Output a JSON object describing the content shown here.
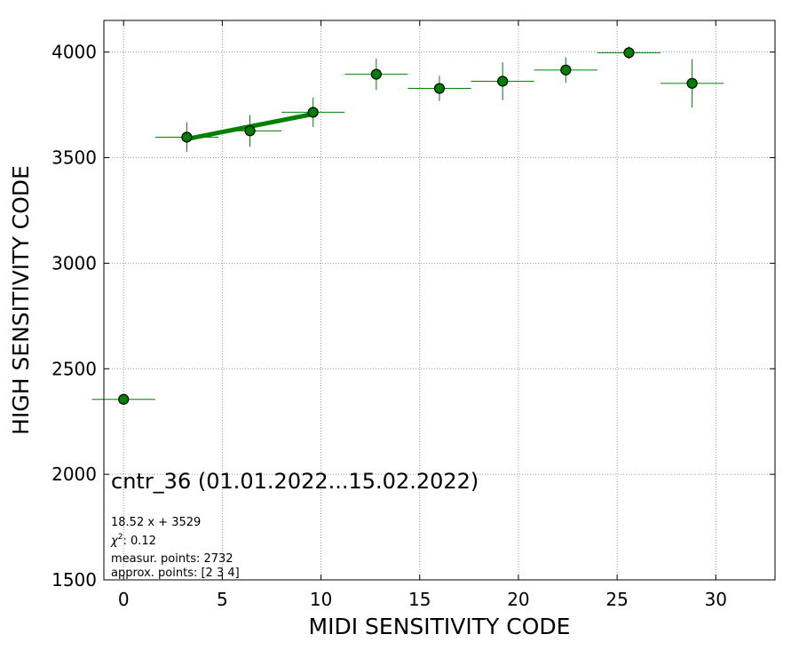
{
  "chart_data": {
    "type": "scatter",
    "title": "cntr_36 (01.01.2022...15.02.2022)",
    "xlabel": "MIDI SENSITIVITY CODE",
    "ylabel": "HIGH SENSITIVITY CODE",
    "xlim": [
      -1,
      33
    ],
    "ylim": [
      1500,
      4150
    ],
    "xticks": [
      0,
      5,
      10,
      15,
      20,
      25,
      30
    ],
    "yticks": [
      1500,
      2000,
      2500,
      3000,
      3500,
      4000
    ],
    "grid": true,
    "colors": {
      "marker": "#008000",
      "edge": "#000000",
      "fit": "#008000",
      "grid": "#808080"
    },
    "points": [
      {
        "x": 0.0,
        "y": 2355,
        "xerr": 1.6,
        "yerr": 0
      },
      {
        "x": 3.2,
        "y": 3597,
        "xerr": 1.6,
        "yerr": 70
      },
      {
        "x": 6.4,
        "y": 3627,
        "xerr": 1.6,
        "yerr": 75
      },
      {
        "x": 9.6,
        "y": 3715,
        "xerr": 1.6,
        "yerr": 70
      },
      {
        "x": 12.8,
        "y": 3895,
        "xerr": 1.6,
        "yerr": 75
      },
      {
        "x": 16.0,
        "y": 3828,
        "xerr": 1.6,
        "yerr": 60
      },
      {
        "x": 19.2,
        "y": 3862,
        "xerr": 1.6,
        "yerr": 90
      },
      {
        "x": 22.4,
        "y": 3915,
        "xerr": 1.6,
        "yerr": 60
      },
      {
        "x": 25.6,
        "y": 3997,
        "xerr": 1.6,
        "yerr": 30
      },
      {
        "x": 28.8,
        "y": 3852,
        "xerr": 1.6,
        "yerr": 115
      }
    ],
    "fit": {
      "slope": 18.52,
      "intercept": 3529,
      "x_range": [
        3.2,
        9.6
      ]
    },
    "annotations": [
      "18.52 x + 3529",
      ": 0.12",
      "measur. points: 2732",
      "approx. points: [2 3 4]"
    ],
    "chi_symbol": "χ",
    "chi_sup": "2"
  }
}
